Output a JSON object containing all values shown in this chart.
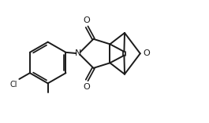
{
  "bg_color": "#ffffff",
  "line_color": "#1a1a1a",
  "line_width": 1.4,
  "font_size": 7.5,
  "figsize": [
    2.65,
    1.57
  ],
  "dpi": 100,
  "xlim": [
    0.0,
    8.5
  ],
  "ylim": [
    0.5,
    5.5
  ]
}
